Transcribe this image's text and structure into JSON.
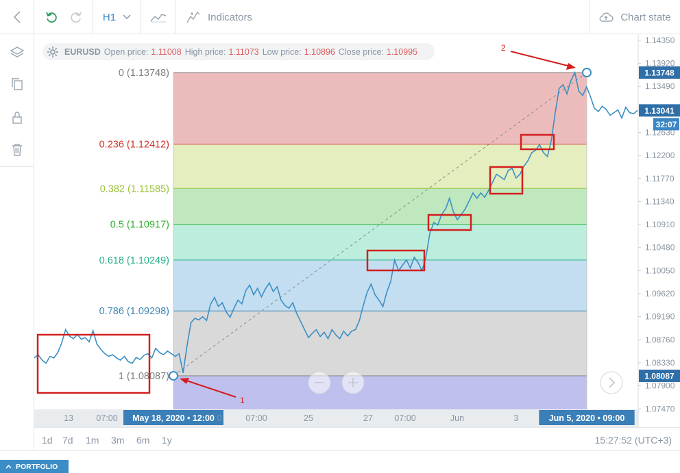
{
  "toolbar": {
    "timeframe": "H1",
    "indicators_label": "Indicators",
    "chart_state_label": "Chart state"
  },
  "info": {
    "symbol": "EURUSD",
    "open_label": "Open price:",
    "open": "1.11008",
    "high_label": "High price:",
    "high": "1.11073",
    "low_label": "Low price:",
    "low": "1.10896",
    "close_label": "Close price:",
    "close": "1.10995"
  },
  "bottom": {
    "timeframes": [
      "1d",
      "7d",
      "1m",
      "3m",
      "6m",
      "1y"
    ],
    "clock": "15:27:52 (UTC+3)"
  },
  "status": {
    "portfolio_label": "PORTFOLIO"
  },
  "chart_data": {
    "type": "line",
    "symbol": "EURUSD",
    "y_ticks": [
      "1.14350",
      "1.13920",
      "1.13490",
      "1.12630",
      "1.12200",
      "1.11770",
      "1.11340",
      "1.10910",
      "1.10480",
      "1.10050",
      "1.09620",
      "1.09190",
      "1.08760",
      "1.08330",
      "1.07900",
      "1.07470"
    ],
    "y_badges": [
      {
        "label": "1.13748",
        "value": 1.13748
      },
      {
        "label": "1.13041",
        "value": 1.13041
      },
      {
        "label": "32:07",
        "value": 1.12785
      },
      {
        "label": "1.08087",
        "value": 1.08087
      }
    ],
    "x_ticks": [
      "13",
      "07:00",
      "May 18, 2020 • 12:00",
      "0",
      "07:00",
      "25",
      "27",
      "07:00",
      "Jun",
      "3",
      "0",
      "Jun 5, 2020 • 09:00"
    ],
    "fib_levels": [
      {
        "label": "0 (1.13748)",
        "ratio": 0,
        "value": 1.13748,
        "color": "#7f7f7f",
        "fill": "#ecbcbc"
      },
      {
        "label": "0.236 (1.12412)",
        "ratio": 0.236,
        "value": 1.12412,
        "color": "#d0312d",
        "fill": "#e4eebf"
      },
      {
        "label": "0.382 (1.11585)",
        "ratio": 0.382,
        "value": 1.11585,
        "color": "#9bc33b",
        "fill": "#bfe8bf"
      },
      {
        "label": "0.5 (1.10917)",
        "ratio": 0.5,
        "value": 1.10917,
        "color": "#30b030",
        "fill": "#bdeedd"
      },
      {
        "label": "0.618 (1.10249)",
        "ratio": 0.618,
        "value": 1.10249,
        "color": "#26b08c",
        "fill": "#c3def0"
      },
      {
        "label": "0.786 (1.09298)",
        "ratio": 0.786,
        "value": 1.09298,
        "color": "#3b86b4",
        "fill": "#d9d9d9"
      },
      {
        "label": "1 (1.08087)",
        "ratio": 1,
        "value": 1.08087,
        "color": "#7f7f7f",
        "fill": "#c0c0ee"
      }
    ],
    "annotations": [
      "1",
      "2"
    ],
    "price_series": [
      1.0842,
      1.0848,
      1.0838,
      1.0832,
      1.0845,
      1.0842,
      1.0852,
      1.087,
      1.0895,
      1.0883,
      1.0878,
      1.0886,
      1.0877,
      1.088,
      1.0872,
      1.0893,
      1.0868,
      1.0858,
      1.085,
      1.0845,
      1.0848,
      1.0842,
      1.0838,
      1.0845,
      1.0835,
      1.0832,
      1.0843,
      1.0839,
      1.0847,
      1.085,
      1.0842,
      1.086,
      1.0852,
      1.0848,
      1.0855,
      1.085,
      1.0845,
      1.085,
      1.0814,
      1.0865,
      1.0908,
      1.0916,
      1.0913,
      1.0919,
      1.0912,
      1.0942,
      1.0955,
      1.0938,
      1.0945,
      1.0928,
      1.0918,
      1.0935,
      1.095,
      1.0943,
      1.0968,
      1.0978,
      1.096,
      1.0972,
      1.0956,
      1.0971,
      1.0982,
      1.0966,
      1.0975,
      1.095,
      1.094,
      1.0935,
      1.0945,
      1.0925,
      1.091,
      1.0895,
      1.088,
      1.0888,
      1.0895,
      1.0882,
      1.089,
      1.0878,
      1.0895,
      1.0885,
      1.0878,
      1.0892,
      1.0883,
      1.0892,
      1.0895,
      1.0912,
      1.094,
      1.0965,
      1.098,
      1.096,
      1.095,
      1.0938,
      1.0965,
      1.0985,
      1.1025,
      1.1005,
      1.1015,
      1.1025,
      1.101,
      1.103,
      1.102,
      1.1005,
      1.103,
      1.1075,
      1.1095,
      1.109,
      1.111,
      1.112,
      1.114,
      1.1115,
      1.11,
      1.111,
      1.112,
      1.1135,
      1.115,
      1.114,
      1.115,
      1.1142,
      1.1155,
      1.117,
      1.1185,
      1.118,
      1.1175,
      1.1192,
      1.1196,
      1.1178,
      1.1185,
      1.12,
      1.121,
      1.1225,
      1.123,
      1.124,
      1.1225,
      1.1218,
      1.1248,
      1.13,
      1.1345,
      1.1352,
      1.1335,
      1.136,
      1.1375,
      1.134,
      1.1332,
      1.1348,
      1.133,
      1.1308,
      1.1302,
      1.1312,
      1.1306,
      1.1295,
      1.13,
      1.1305,
      1.129,
      1.131,
      1.13,
      1.1298,
      1.1304
    ]
  }
}
